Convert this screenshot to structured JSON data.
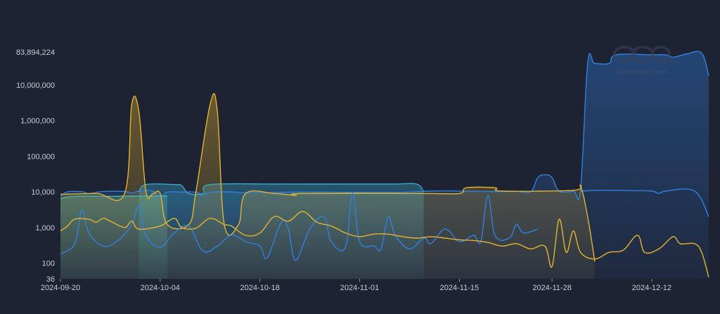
{
  "chart_data": {
    "type": "area",
    "title": "",
    "xlabel": "",
    "ylabel": "",
    "y_scale": "log",
    "ylim": [
      36,
      83894224
    ],
    "xlim": [
      "2024-09-20",
      "2024-12-20"
    ],
    "grid": false,
    "legend": "none",
    "y_ticks": [
      36,
      100,
      1000,
      10000,
      100000,
      1000000,
      10000000,
      83894224
    ],
    "y_tick_labels": [
      "36",
      "100",
      "1,000",
      "10,000",
      "100,000",
      "1,000,000",
      "10,000,000",
      "83,894,224"
    ],
    "x_ticks": [
      "2024-09-20",
      "2024-10-04",
      "2024-10-18",
      "2024-11-01",
      "2024-11-15",
      "2024-11-28",
      "2024-12-12"
    ],
    "x_tick_labels": [
      "2024-09-20",
      "2024-10-04",
      "2024-10-18",
      "2024-11-01",
      "2024-11-15",
      "2024-11-28",
      "2024-12-12"
    ],
    "series": [
      {
        "key": "blue-area",
        "color": "#2f80e0",
        "fill": true,
        "points": [
          [
            "2024-09-20",
            7500
          ],
          [
            "2024-09-21",
            10000
          ],
          [
            "2024-09-23",
            10000
          ],
          [
            "2024-09-24",
            9000
          ],
          [
            "2024-09-26",
            10200
          ],
          [
            "2024-09-29",
            10200
          ],
          [
            "2024-09-30",
            9200
          ],
          [
            "2024-10-01",
            10500
          ],
          [
            "2024-10-03",
            10500
          ],
          [
            "2024-10-04",
            7000
          ],
          [
            "2024-10-05",
            9800
          ],
          [
            "2024-10-07",
            9800
          ],
          [
            "2024-10-09",
            9800
          ],
          [
            "2024-10-10",
            8000
          ],
          [
            "2024-10-11",
            9900
          ],
          [
            "2024-10-14",
            9900
          ],
          [
            "2024-10-16",
            9500
          ],
          [
            "2024-10-20",
            9500
          ],
          [
            "2024-10-22",
            9800
          ],
          [
            "2024-10-26",
            9800
          ],
          [
            "2024-10-30",
            9700
          ],
          [
            "2024-11-03",
            9700
          ],
          [
            "2024-11-07",
            9700
          ],
          [
            "2024-11-11",
            10500
          ],
          [
            "2024-11-15",
            10500
          ],
          [
            "2024-11-19",
            10200
          ],
          [
            "2024-11-23",
            10200
          ],
          [
            "2024-11-25",
            10000
          ],
          [
            "2024-11-26",
            25000
          ],
          [
            "2024-11-27",
            30000
          ],
          [
            "2024-11-28",
            25000
          ],
          [
            "2024-11-29",
            10500
          ],
          [
            "2024-12-01",
            10500
          ],
          [
            "2024-12-02",
            12000
          ],
          [
            "2024-12-03",
            40000000
          ],
          [
            "2024-12-04",
            40000000
          ],
          [
            "2024-12-06",
            40000000
          ],
          [
            "2024-12-07",
            70000000
          ],
          [
            "2024-12-12",
            70000000
          ],
          [
            "2024-12-14",
            70000000
          ],
          [
            "2024-12-15",
            60000000
          ],
          [
            "2024-12-17",
            75000000
          ],
          [
            "2024-12-19",
            78000000
          ],
          [
            "2024-12-20",
            18000000
          ]
        ]
      },
      {
        "key": "blue-line",
        "color": "#2f80e0",
        "fill": false,
        "points": [
          [
            "2024-12-02",
            10500
          ],
          [
            "2024-12-05",
            11000
          ],
          [
            "2024-12-09",
            10800
          ],
          [
            "2024-12-12",
            10500
          ],
          [
            "2024-12-13",
            9000
          ],
          [
            "2024-12-14",
            10500
          ],
          [
            "2024-12-18",
            10500
          ],
          [
            "2024-12-20",
            2000
          ]
        ]
      },
      {
        "key": "cyan-area",
        "color": "#3aa5c8",
        "fill": true,
        "points": [
          [
            "2024-10-01",
            10000
          ],
          [
            "2024-10-02",
            16000
          ],
          [
            "2024-10-06",
            16000
          ],
          [
            "2024-10-07",
            15000
          ],
          [
            "2024-10-08",
            9000
          ],
          [
            "2024-10-10",
            9000
          ],
          [
            "2024-10-11",
            16000
          ],
          [
            "2024-10-20",
            16500
          ],
          [
            "2024-10-26",
            16500
          ],
          [
            "2024-11-01",
            16500
          ],
          [
            "2024-11-06",
            16500
          ],
          [
            "2024-11-09",
            16500
          ],
          [
            "2024-11-10",
            10000
          ]
        ]
      },
      {
        "key": "teal-area",
        "color": "#4fb3a8",
        "fill": true,
        "points": [
          [
            "2024-09-20",
            6500
          ],
          [
            "2024-09-22",
            7500
          ],
          [
            "2024-09-27",
            7500
          ],
          [
            "2024-10-01",
            7600
          ],
          [
            "2024-10-05",
            7600
          ]
        ]
      },
      {
        "key": "gold-area",
        "color": "#e5b32c",
        "fill": true,
        "points": [
          [
            "2024-09-20",
            8500
          ],
          [
            "2024-09-25",
            9000
          ],
          [
            "2024-09-29",
            9000
          ],
          [
            "2024-09-30",
            2800000
          ],
          [
            "2024-10-01",
            1800000
          ],
          [
            "2024-10-02",
            10000
          ],
          [
            "2024-10-03",
            9000
          ],
          [
            "2024-10-04",
            9000
          ],
          [
            "2024-10-05",
            1200
          ],
          [
            "2024-10-08",
            1200
          ],
          [
            "2024-10-09",
            9500
          ],
          [
            "2024-10-11",
            2800000
          ],
          [
            "2024-10-12",
            2000000
          ],
          [
            "2024-10-13",
            1200
          ],
          [
            "2024-10-15",
            1200
          ],
          [
            "2024-10-16",
            9000
          ],
          [
            "2024-10-20",
            9000
          ],
          [
            "2024-10-23",
            8000
          ],
          [
            "2024-10-24",
            9000
          ],
          [
            "2024-11-10",
            9000
          ],
          [
            "2024-11-15",
            9000
          ],
          [
            "2024-11-16",
            13000
          ],
          [
            "2024-11-20",
            13000
          ],
          [
            "2024-11-21",
            10500
          ],
          [
            "2024-12-01",
            11000
          ],
          [
            "2024-12-02",
            14000
          ],
          [
            "2024-12-03",
            2000
          ],
          [
            "2024-12-04",
            110
          ]
        ]
      },
      {
        "key": "blue-detail",
        "color": "#2f80e0",
        "fill": false,
        "points": [
          [
            "2024-09-20",
            180
          ],
          [
            "2024-09-22",
            350
          ],
          [
            "2024-09-23",
            3000
          ],
          [
            "2024-09-24",
            700
          ],
          [
            "2024-09-26",
            300
          ],
          [
            "2024-09-28",
            420
          ],
          [
            "2024-09-30",
            1200
          ],
          [
            "2024-10-01",
            4000
          ],
          [
            "2024-10-02",
            600
          ],
          [
            "2024-10-04",
            280
          ],
          [
            "2024-10-06",
            700
          ],
          [
            "2024-10-08",
            1100
          ],
          [
            "2024-10-10",
            220
          ],
          [
            "2024-10-12",
            300
          ],
          [
            "2024-10-14",
            600
          ],
          [
            "2024-10-16",
            400
          ],
          [
            "2024-10-18",
            300
          ],
          [
            "2024-10-19",
            140
          ],
          [
            "2024-10-21",
            1400
          ],
          [
            "2024-10-22",
            900
          ],
          [
            "2024-10-23",
            120
          ],
          [
            "2024-10-25",
            900
          ],
          [
            "2024-10-27",
            2000
          ],
          [
            "2024-10-28",
            400
          ],
          [
            "2024-10-30",
            280
          ],
          [
            "2024-10-31",
            9000
          ],
          [
            "2024-11-01",
            400
          ],
          [
            "2024-11-03",
            300
          ],
          [
            "2024-11-04",
            250
          ],
          [
            "2024-11-05",
            2000
          ],
          [
            "2024-11-06",
            600
          ],
          [
            "2024-11-08",
            250
          ],
          [
            "2024-11-10",
            500
          ],
          [
            "2024-11-11",
            350
          ],
          [
            "2024-11-13",
            900
          ],
          [
            "2024-11-15",
            400
          ],
          [
            "2024-11-17",
            600
          ],
          [
            "2024-11-18",
            400
          ],
          [
            "2024-11-19",
            8000
          ],
          [
            "2024-11-20",
            600
          ],
          [
            "2024-11-22",
            500
          ],
          [
            "2024-11-23",
            1200
          ],
          [
            "2024-11-24",
            700
          ],
          [
            "2024-11-26",
            900
          ]
        ]
      },
      {
        "key": "gold-detail",
        "color": "#e5b32c",
        "fill": false,
        "points": [
          [
            "2024-09-20",
            800
          ],
          [
            "2024-09-21",
            1100
          ],
          [
            "2024-09-22",
            1700
          ],
          [
            "2024-09-24",
            1700
          ],
          [
            "2024-09-25",
            1400
          ],
          [
            "2024-09-26",
            1800
          ],
          [
            "2024-09-27",
            1500
          ],
          [
            "2024-09-29",
            1000
          ],
          [
            "2024-09-30",
            1500
          ],
          [
            "2024-10-01",
            900
          ],
          [
            "2024-10-04",
            1100
          ],
          [
            "2024-10-06",
            1800
          ],
          [
            "2024-10-07",
            1000
          ],
          [
            "2024-10-09",
            950
          ],
          [
            "2024-10-11",
            1800
          ],
          [
            "2024-10-13",
            1200
          ],
          [
            "2024-10-14",
            1100
          ],
          [
            "2024-10-16",
            600
          ],
          [
            "2024-10-18",
            700
          ],
          [
            "2024-10-20",
            2000
          ],
          [
            "2024-10-22",
            1500
          ],
          [
            "2024-10-24",
            2800
          ],
          [
            "2024-10-26",
            1400
          ],
          [
            "2024-10-28",
            1100
          ],
          [
            "2024-10-30",
            700
          ],
          [
            "2024-11-01",
            550
          ],
          [
            "2024-11-03",
            650
          ],
          [
            "2024-11-05",
            650
          ],
          [
            "2024-11-07",
            550
          ],
          [
            "2024-11-09",
            500
          ],
          [
            "2024-11-11",
            550
          ],
          [
            "2024-11-13",
            500
          ],
          [
            "2024-11-15",
            450
          ],
          [
            "2024-11-17",
            430
          ],
          [
            "2024-11-19",
            380
          ],
          [
            "2024-11-21",
            300
          ],
          [
            "2024-11-23",
            350
          ],
          [
            "2024-11-25",
            250
          ],
          [
            "2024-11-27",
            300
          ],
          [
            "2024-11-28",
            80
          ],
          [
            "2024-11-29",
            1700
          ],
          [
            "2024-11-30",
            200
          ],
          [
            "2024-12-01",
            800
          ],
          [
            "2024-12-02",
            200
          ],
          [
            "2024-12-04",
            130
          ],
          [
            "2024-12-06",
            200
          ],
          [
            "2024-12-08",
            230
          ],
          [
            "2024-12-10",
            600
          ],
          [
            "2024-12-11",
            200
          ],
          [
            "2024-12-13",
            250
          ],
          [
            "2024-12-15",
            550
          ],
          [
            "2024-12-16",
            350
          ],
          [
            "2024-12-18",
            350
          ],
          [
            "2024-12-19",
            200
          ],
          [
            "2024-12-20",
            40
          ]
        ]
      }
    ],
    "watermark": "WhatsOnChain"
  }
}
